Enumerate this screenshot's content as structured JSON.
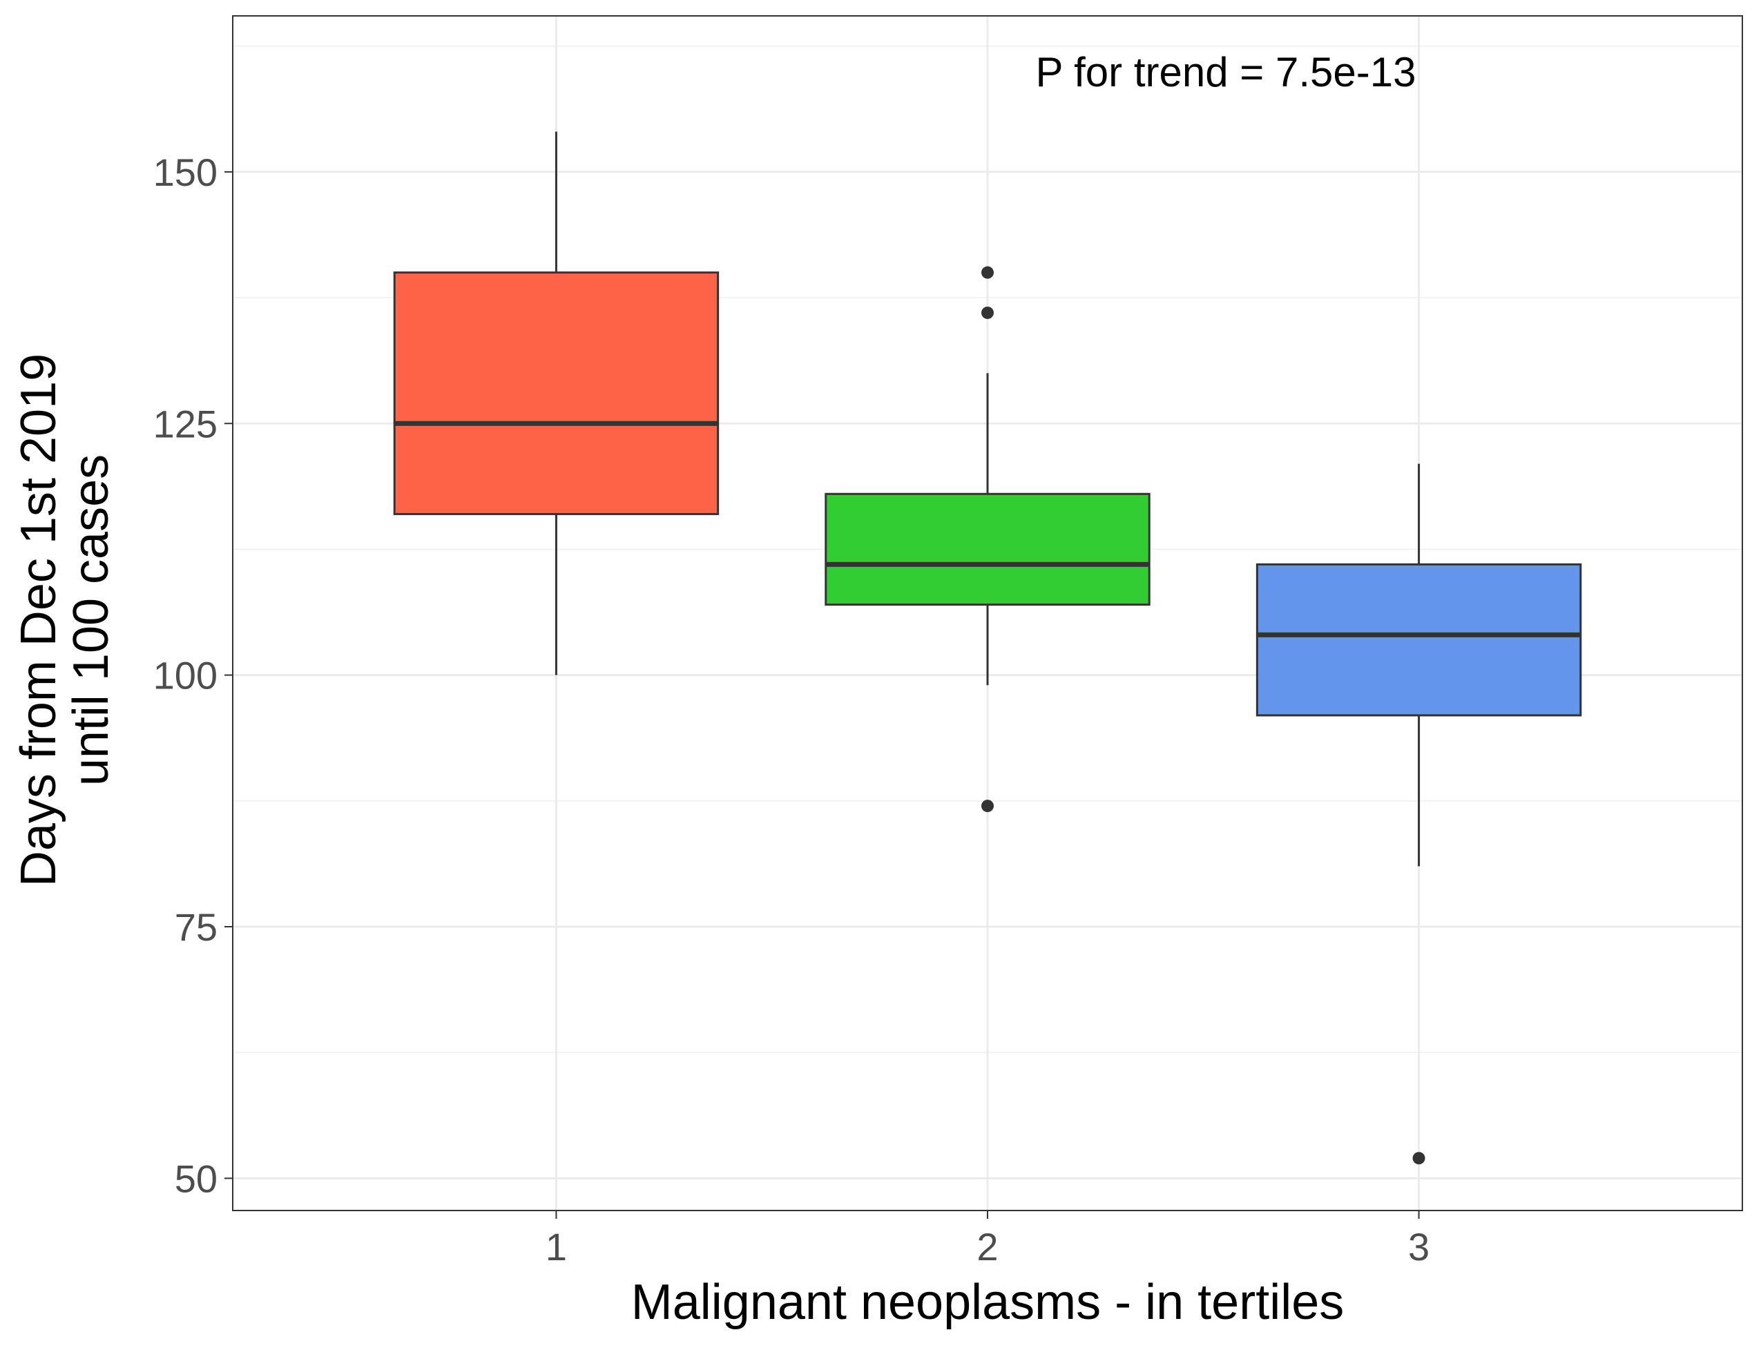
{
  "chart_data": {
    "type": "box",
    "xlabel": "Malignant neoplasms - in tertiles",
    "ylabel_lines": [
      "Days from Dec 1st 2019",
      "until 100 cases"
    ],
    "annotation": "P for trend = 7.5e-13",
    "ylim": [
      46.8,
      165.5
    ],
    "yticks": [
      50,
      75,
      100,
      125,
      150
    ],
    "grid": true,
    "categories": [
      "1",
      "2",
      "3"
    ],
    "boxes": [
      {
        "category": "1",
        "fill": "#ff6347",
        "whisker_low": 100,
        "q1": 116,
        "median": 125,
        "q3": 140,
        "whisker_high": 154,
        "outliers": []
      },
      {
        "category": "2",
        "fill": "#32cd32",
        "whisker_low": 99,
        "q1": 107,
        "median": 111,
        "q3": 118,
        "whisker_high": 130,
        "outliers": [
          140,
          136,
          87
        ]
      },
      {
        "category": "3",
        "fill": "#6495ed",
        "whisker_low": 81,
        "q1": 96,
        "median": 104,
        "q3": 111,
        "whisker_high": 121,
        "outliers": [
          52
        ]
      }
    ]
  }
}
